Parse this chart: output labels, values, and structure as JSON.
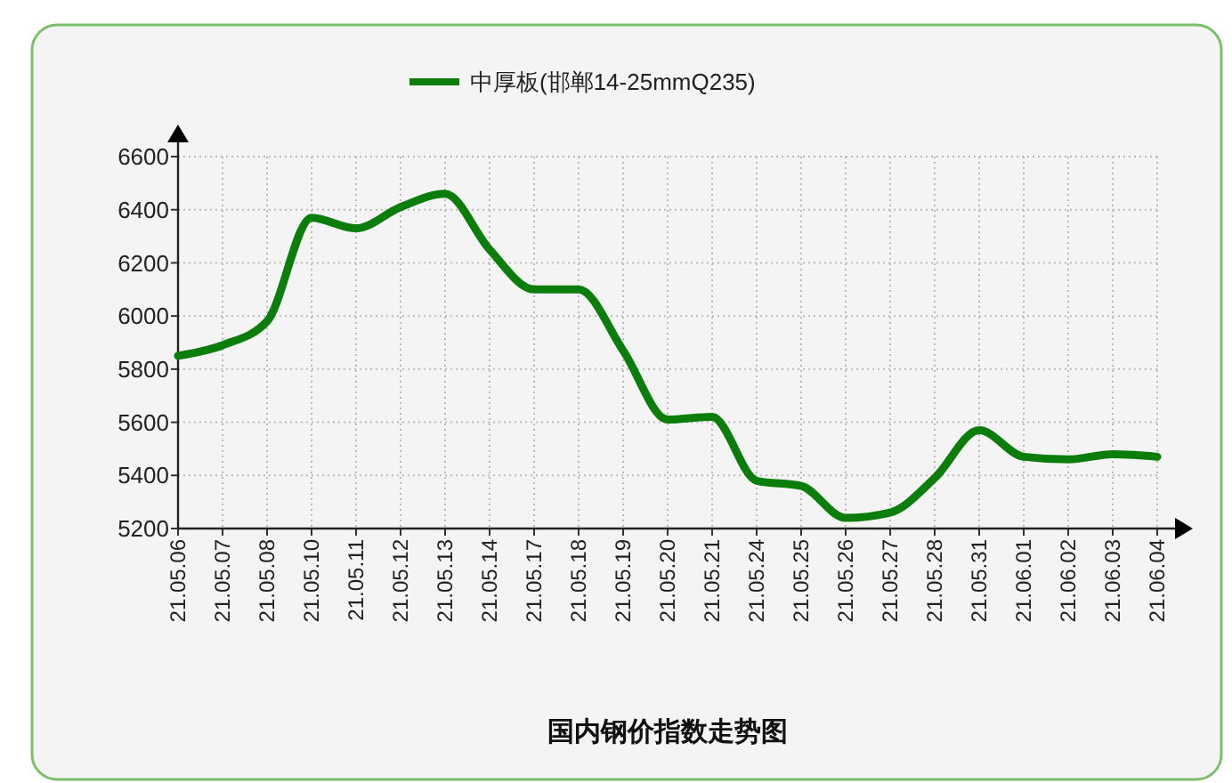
{
  "chart_data": {
    "type": "line",
    "title": "国内钢价指数走势图",
    "categories": [
      "21.05.06",
      "21.05.07",
      "21.05.08",
      "21.05.10",
      "21.05.11",
      "21.05.12",
      "21.05.13",
      "21.05.14",
      "21.05.17",
      "21.05.18",
      "21.05.19",
      "21.05.20",
      "21.05.21",
      "21.05.24",
      "21.05.25",
      "21.05.26",
      "21.05.27",
      "21.05.28",
      "21.05.31",
      "21.06.01",
      "21.06.02",
      "21.06.03",
      "21.06.04"
    ],
    "series": [
      {
        "name": "中厚板(邯郸14-25mmQ235)",
        "color": "#0a7d0a",
        "values": [
          5850,
          5890,
          5980,
          6370,
          6330,
          6410,
          6460,
          6250,
          6100,
          6100,
          5870,
          5610,
          5620,
          5380,
          5360,
          5240,
          5260,
          5390,
          5570,
          5470,
          5460,
          5480,
          5470
        ]
      }
    ],
    "ylim": [
      5200,
      6600
    ],
    "yticks": [
      5200,
      5400,
      5600,
      5800,
      6000,
      6200,
      6400,
      6600
    ],
    "grid": true,
    "legend": "top",
    "marker": "none",
    "line_style": "solid"
  }
}
